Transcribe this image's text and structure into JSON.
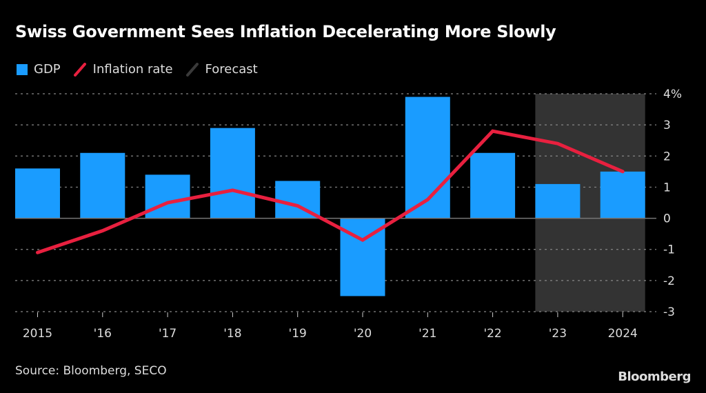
{
  "header": {
    "title": "Swiss Government Sees Inflation Decelerating More Slowly"
  },
  "legend": [
    {
      "label": "GDP",
      "type": "box",
      "color": "#1a9cff"
    },
    {
      "label": "Inflation rate",
      "type": "line",
      "color": "#e8203f"
    },
    {
      "label": "Forecast",
      "type": "line",
      "color": "#3a3a3a"
    }
  ],
  "footer": {
    "source": "Source: Bloomberg, SECO",
    "brand": "Bloomberg"
  },
  "colors": {
    "gdp": "#1a9cff",
    "inflation": "#e8203f",
    "forecast": "#333333",
    "grid": "#888888",
    "zero": "#777777",
    "text": "#dddddd"
  },
  "chart_data": {
    "type": "bar",
    "title": "Swiss Government Sees Inflation Decelerating More Slowly",
    "xlabel": "",
    "ylabel": "",
    "categories": [
      "2015",
      "'16",
      "'17",
      "'18",
      "'19",
      "'20",
      "'21",
      "'22",
      "'23",
      "2024"
    ],
    "series": [
      {
        "name": "GDP",
        "type": "bar",
        "values": [
          1.6,
          2.1,
          1.4,
          2.9,
          1.2,
          -2.5,
          3.9,
          2.1,
          1.1,
          1.5
        ]
      },
      {
        "name": "Inflation rate",
        "type": "line",
        "values": [
          -1.1,
          -0.4,
          0.5,
          0.9,
          0.4,
          -0.7,
          0.6,
          2.8,
          2.4,
          1.5
        ]
      }
    ],
    "forecast_range": [
      "'23",
      "2024"
    ],
    "ylim": [
      -3,
      4
    ],
    "yticks": [
      4,
      3,
      2,
      1,
      0,
      -1,
      -2,
      -3
    ],
    "ytick_labels": [
      "4%",
      "3",
      "2",
      "1",
      "0",
      "-1",
      "-2",
      "-3"
    ],
    "y_axis_side": "right",
    "grid": true,
    "legend_position": "top-left"
  }
}
